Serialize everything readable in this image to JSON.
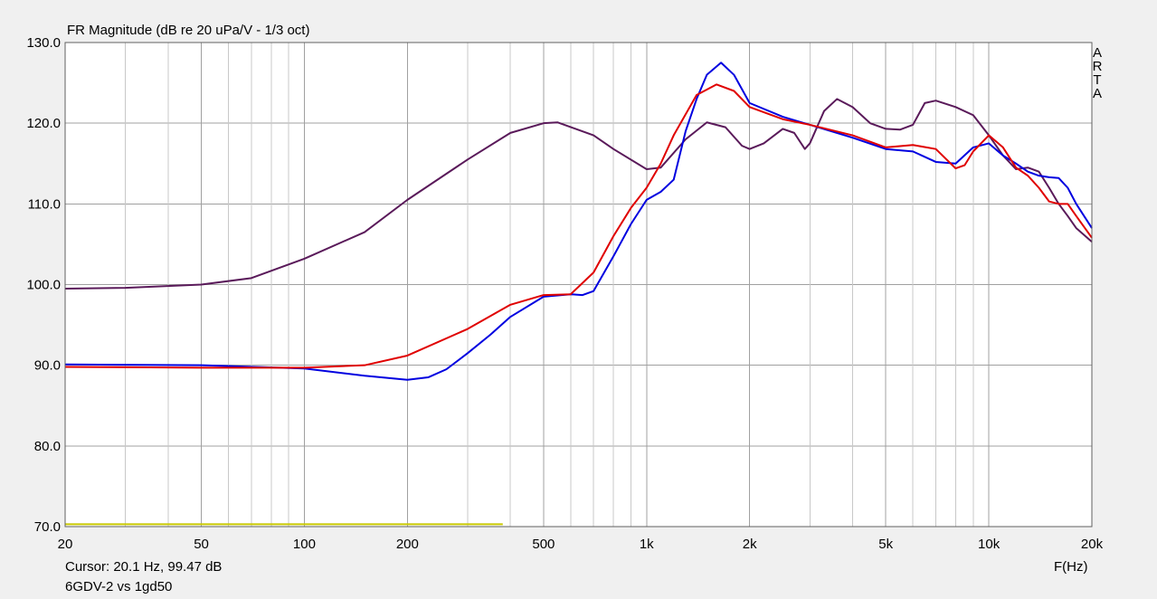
{
  "chart_data": {
    "type": "line",
    "title": "FR Magnitude (dB re 20 uPa/V - 1/3 oct)",
    "side_label": "ARTA",
    "x_label": "F(Hz)",
    "cursor_text": "Cursor: 20.1 Hz, 99.47 dB",
    "caption": "6GDV-2 vs 1gd50",
    "log_x": true,
    "grid": true,
    "xlim": [
      20,
      20000
    ],
    "ylim": [
      70,
      130
    ],
    "xticks": [
      20,
      50,
      100,
      200,
      500,
      {
        "value": 1000,
        "label": "1k"
      },
      {
        "value": 2000,
        "label": "2k"
      },
      {
        "value": 5000,
        "label": "5k"
      },
      {
        "value": 10000,
        "label": "10k"
      },
      {
        "value": 20000,
        "label": "20k"
      }
    ],
    "xminorticks": [
      30,
      40,
      60,
      70,
      80,
      90,
      300,
      400,
      600,
      700,
      800,
      900,
      3000,
      4000,
      6000,
      7000,
      8000,
      9000
    ],
    "yticks": [
      {
        "value": 70,
        "label": "70.0"
      },
      {
        "value": 80,
        "label": "80.0"
      },
      {
        "value": 90,
        "label": "90.0"
      },
      {
        "value": 100,
        "label": "100.0"
      },
      {
        "value": 110,
        "label": "110.0"
      },
      {
        "value": 120,
        "label": "120.0"
      },
      {
        "value": 130,
        "label": "130.0"
      }
    ],
    "series": [
      {
        "color": "#c8c800",
        "x": [
          20,
          380
        ],
        "values": [
          70.3,
          70.3
        ]
      },
      {
        "color": "#5a1a5a",
        "x": [
          20,
          30,
          50,
          70,
          100,
          150,
          200,
          300,
          400,
          500,
          550,
          700,
          800,
          1000,
          1100,
          1300,
          1500,
          1700,
          1900,
          2000,
          2200,
          2500,
          2700,
          2900,
          3000,
          3300,
          3600,
          4000,
          4500,
          5000,
          5500,
          6000,
          6500,
          7000,
          8000,
          9000,
          10000,
          11000,
          12000,
          13000,
          14000,
          15000,
          16000,
          17000,
          18000,
          20000
        ],
        "values": [
          99.5,
          99.6,
          100.0,
          100.8,
          103.2,
          106.5,
          110.5,
          115.5,
          118.8,
          120.0,
          120.1,
          118.5,
          116.8,
          114.3,
          114.5,
          118.0,
          120.1,
          119.5,
          117.2,
          116.8,
          117.5,
          119.3,
          118.8,
          116.8,
          117.5,
          121.5,
          123.0,
          122.0,
          120.0,
          119.3,
          119.2,
          119.8,
          122.5,
          122.8,
          122.0,
          121.0,
          118.5,
          116.0,
          114.3,
          114.5,
          114.0,
          112.0,
          110.0,
          108.5,
          107.0,
          105.3
        ]
      },
      {
        "color": "#0000e0",
        "x": [
          20,
          50,
          100,
          150,
          200,
          230,
          260,
          300,
          350,
          400,
          500,
          600,
          650,
          700,
          800,
          900,
          1000,
          1100,
          1200,
          1300,
          1400,
          1500,
          1650,
          1800,
          2000,
          2500,
          3000,
          4000,
          5000,
          6000,
          7000,
          8000,
          9000,
          10000,
          11000,
          12000,
          13000,
          14000,
          15000,
          16000,
          17000,
          18000,
          20000
        ],
        "values": [
          90.1,
          90.0,
          89.6,
          88.7,
          88.2,
          88.5,
          89.5,
          91.5,
          93.8,
          96.0,
          98.5,
          98.8,
          98.7,
          99.2,
          103.5,
          107.5,
          110.5,
          111.5,
          113.0,
          119.0,
          123.0,
          126.0,
          127.5,
          126.0,
          122.5,
          120.8,
          119.8,
          118.2,
          116.8,
          116.5,
          115.2,
          115.0,
          117.0,
          117.5,
          116.0,
          115.0,
          114.0,
          113.5,
          113.3,
          113.2,
          112.0,
          110.0,
          107.0
        ]
      },
      {
        "color": "#e00000",
        "x": [
          20,
          50,
          100,
          150,
          200,
          300,
          400,
          500,
          600,
          700,
          800,
          900,
          1000,
          1100,
          1200,
          1400,
          1600,
          1800,
          2000,
          2500,
          3000,
          4000,
          5000,
          6000,
          7000,
          8000,
          8500,
          9000,
          10000,
          11000,
          12000,
          13000,
          14000,
          15000,
          16000,
          17000,
          18000,
          20000
        ],
        "values": [
          89.8,
          89.7,
          89.7,
          90.0,
          91.2,
          94.5,
          97.5,
          98.7,
          98.8,
          101.5,
          106.0,
          109.5,
          112.0,
          115.0,
          118.5,
          123.5,
          124.8,
          124.0,
          122.0,
          120.5,
          119.8,
          118.5,
          117.0,
          117.3,
          116.8,
          114.4,
          114.8,
          116.5,
          118.5,
          117.0,
          114.5,
          113.5,
          112.0,
          110.3,
          110.0,
          110.0,
          108.5,
          105.8
        ]
      }
    ]
  }
}
